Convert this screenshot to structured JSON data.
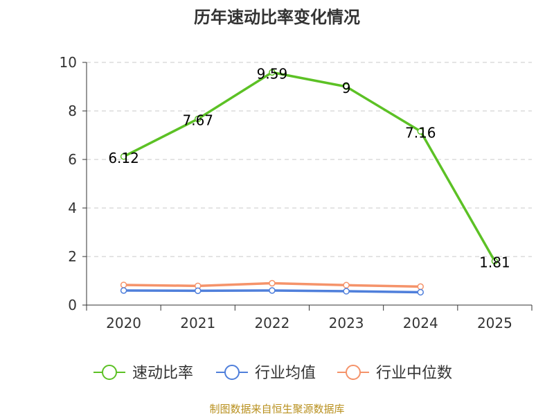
{
  "chart_data": {
    "type": "line",
    "title": "历年速动比率变化情况",
    "categories": [
      "2020",
      "2021",
      "2022",
      "2023",
      "2024",
      "2025"
    ],
    "ylim": [
      0,
      10
    ],
    "yticks": [
      0,
      2,
      4,
      6,
      8,
      10
    ],
    "grid": true,
    "legend_position": "bottom",
    "series": [
      {
        "name": "速动比率",
        "color": "#5cc125",
        "values": [
          6.12,
          7.67,
          9.59,
          9,
          7.16,
          1.81
        ],
        "labels": [
          "6.12",
          "7.67",
          "9.59",
          "9",
          "7.16",
          "1.81"
        ]
      },
      {
        "name": "行业均值",
        "color": "#4f7fdb",
        "values": [
          0.6,
          0.59,
          0.6,
          0.57,
          0.53,
          null
        ]
      },
      {
        "name": "行业中位数",
        "color": "#f5936a",
        "values": [
          0.83,
          0.79,
          0.9,
          0.82,
          0.76,
          null
        ]
      }
    ]
  },
  "source": "制图数据来自恒生聚源数据库"
}
